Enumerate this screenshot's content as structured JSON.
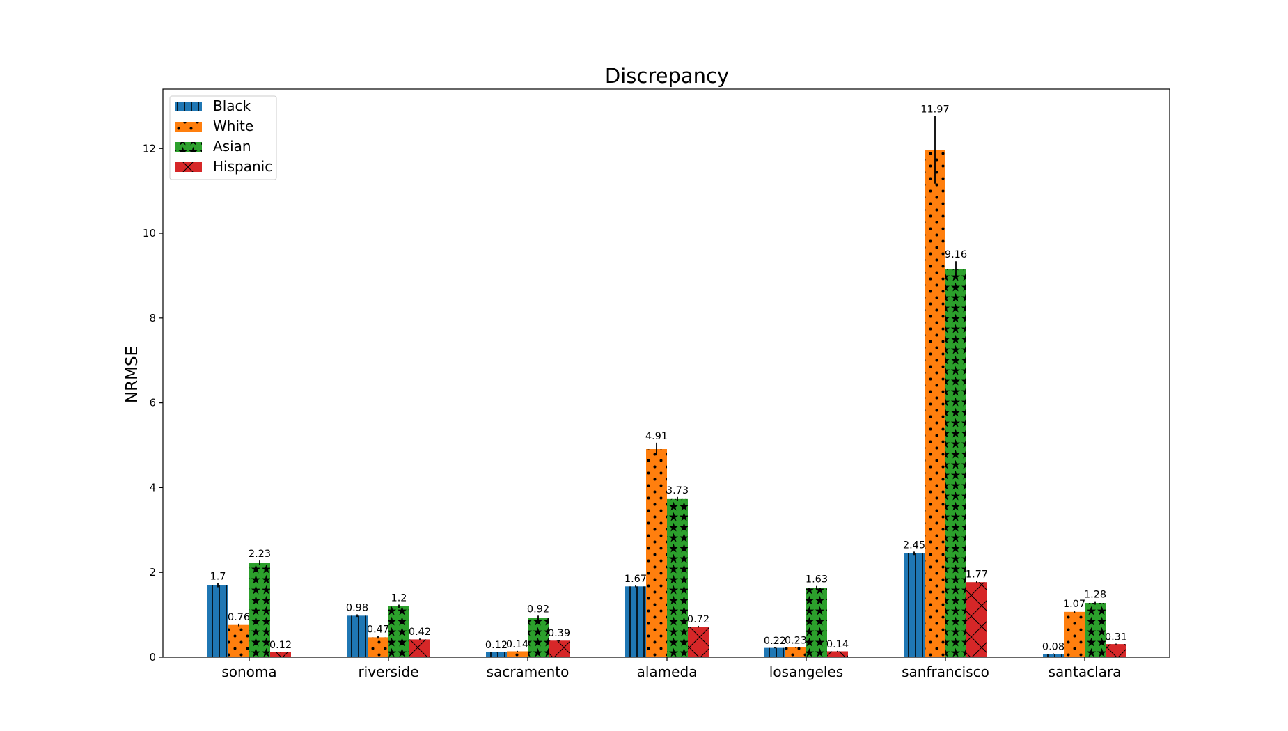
{
  "chart_data": {
    "type": "bar",
    "title": "Discrepancy",
    "xlabel": "",
    "ylabel": "NRMSE",
    "ylim": [
      0,
      13.4
    ],
    "yticks": [
      "0",
      "2",
      "4",
      "6",
      "8",
      "10",
      "12"
    ],
    "categories": [
      "sonoma",
      "riverside",
      "sacramento",
      "alameda",
      "losangeles",
      "sanfrancisco",
      "santaclara"
    ],
    "legend_position": "upper-left",
    "grid": false,
    "series": [
      {
        "name": "Black",
        "color": "#1f77b4",
        "hatch": "vertical-lines",
        "values": [
          1.7,
          0.98,
          0.12,
          1.67,
          0.22,
          2.45,
          0.08
        ],
        "labels": [
          "1.7",
          "0.98",
          "0.12",
          "1.67",
          "0.22",
          "2.45",
          "0.08"
        ],
        "errors": [
          0.05,
          0.03,
          0.01,
          0.02,
          0.01,
          0.04,
          0.01
        ]
      },
      {
        "name": "White",
        "color": "#ff7f0e",
        "hatch": "dots",
        "values": [
          0.76,
          0.47,
          0.14,
          4.91,
          0.23,
          11.97,
          1.07
        ],
        "labels": [
          "0.76",
          "0.47",
          "0.14",
          "4.91",
          "0.23",
          "11.97",
          "1.07"
        ],
        "errors": [
          0.03,
          0.03,
          0.01,
          0.15,
          0.01,
          0.8,
          0.03
        ]
      },
      {
        "name": "Asian",
        "color": "#2ca02c",
        "hatch": "stars",
        "values": [
          2.23,
          1.2,
          0.92,
          3.73,
          1.63,
          9.16,
          1.28
        ],
        "labels": [
          "2.23",
          "1.2",
          "0.92",
          "3.73",
          "1.63",
          "9.16",
          "1.28"
        ],
        "errors": [
          0.05,
          0.04,
          0.06,
          0.05,
          0.05,
          0.18,
          0.04
        ]
      },
      {
        "name": "Hispanic",
        "color": "#d62728",
        "hatch": "crosses",
        "values": [
          0.12,
          0.42,
          0.39,
          0.72,
          0.14,
          1.77,
          0.31
        ],
        "labels": [
          "0.12",
          "0.42",
          "0.39",
          "0.72",
          "0.14",
          "1.77",
          "0.31"
        ],
        "errors": [
          0.01,
          0.02,
          0.02,
          0.02,
          0.01,
          0.03,
          0.01
        ]
      }
    ]
  }
}
